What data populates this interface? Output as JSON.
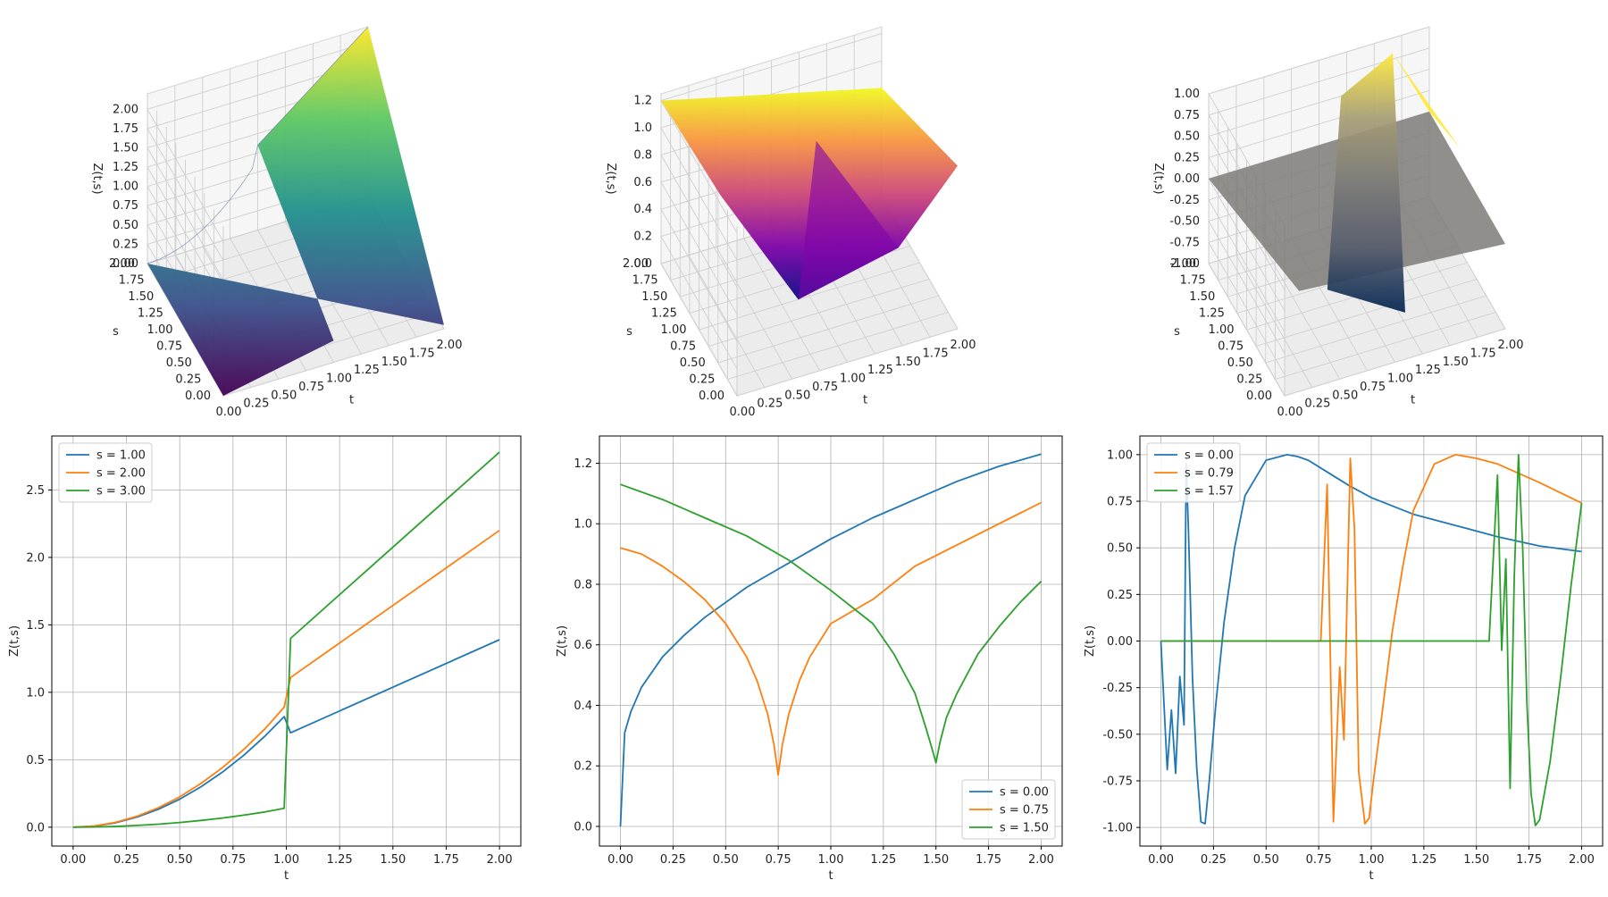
{
  "chart_data": [
    {
      "type": "surface3d",
      "xlabel": "t",
      "ylabel": "s",
      "zlabel": "Z(t,s)",
      "xlim": [
        0,
        2
      ],
      "ylim": [
        0,
        2
      ],
      "zlim": [
        0,
        2.2
      ],
      "xticks": [
        "0.00",
        "0.25",
        "0.50",
        "0.75",
        "1.00",
        "1.25",
        "1.50",
        "1.75",
        "2.00"
      ],
      "yticks": [
        "0.00",
        "0.25",
        "0.50",
        "0.75",
        "1.00",
        "1.25",
        "1.50",
        "1.75",
        "2.00"
      ],
      "zticks": [
        "0.00",
        "0.25",
        "0.50",
        "0.75",
        "1.00",
        "1.25",
        "1.50",
        "1.75",
        "2.00"
      ],
      "colormap": "viridis",
      "colors": [
        "#440154",
        "#3b528b",
        "#21908d",
        "#5dc863",
        "#fde725"
      ]
    },
    {
      "type": "surface3d",
      "xlabel": "t",
      "ylabel": "s",
      "zlabel": "Z(t,s)",
      "xlim": [
        0,
        2
      ],
      "ylim": [
        0,
        2
      ],
      "zlim": [
        0,
        1.25
      ],
      "xticks": [
        "0.00",
        "0.25",
        "0.50",
        "0.75",
        "1.00",
        "1.25",
        "1.50",
        "1.75",
        "2.00"
      ],
      "yticks": [
        "0.00",
        "0.25",
        "0.50",
        "0.75",
        "1.00",
        "1.25",
        "1.50",
        "1.75",
        "2.00"
      ],
      "zticks": [
        "0.0",
        "0.2",
        "0.4",
        "0.6",
        "0.8",
        "1.0",
        "1.2"
      ],
      "colormap": "plasma",
      "colors": [
        "#0d0887",
        "#7e03a8",
        "#cc4778",
        "#f89540",
        "#f0f921"
      ]
    },
    {
      "type": "surface3d",
      "xlabel": "t",
      "ylabel": "s",
      "zlabel": "Z(t,s)",
      "xlim": [
        0,
        2
      ],
      "ylim": [
        0,
        2
      ],
      "zlim": [
        -1,
        1
      ],
      "xticks": [
        "0.00",
        "0.25",
        "0.50",
        "0.75",
        "1.00",
        "1.25",
        "1.50",
        "1.75",
        "2.00"
      ],
      "yticks": [
        "0.00",
        "0.25",
        "0.50",
        "0.75",
        "1.00",
        "1.25",
        "1.50",
        "1.75",
        "2.00"
      ],
      "zticks": [
        "-1.00",
        "-0.75",
        "-0.50",
        "-0.25",
        "0.00",
        "0.25",
        "0.50",
        "0.75",
        "1.00"
      ],
      "colormap": "cividis",
      "colors": [
        "#00224e",
        "#575d6d",
        "#7c7b78",
        "#a59c74",
        "#fee838"
      ]
    },
    {
      "type": "line",
      "xlabel": "t",
      "ylabel": "Z(t,s)",
      "xlim": [
        -0.1,
        2.1
      ],
      "ylim": [
        -0.14,
        2.9
      ],
      "xticks": [
        0,
        0.25,
        0.5,
        0.75,
        1.0,
        1.25,
        1.5,
        1.75,
        2.0
      ],
      "yticks": [
        0,
        0.5,
        1.0,
        1.5,
        2.0,
        2.5
      ],
      "legend_position": "upper left",
      "grid": true,
      "series": [
        {
          "name": "s = 1.00",
          "color": "#1f77b4",
          "x": [
            0,
            0.1,
            0.2,
            0.3,
            0.4,
            0.5,
            0.6,
            0.7,
            0.8,
            0.9,
            0.99,
            1.02,
            2.0
          ],
          "y": [
            0,
            0.008,
            0.033,
            0.075,
            0.133,
            0.208,
            0.3,
            0.408,
            0.533,
            0.675,
            0.82,
            0.7,
            1.39
          ]
        },
        {
          "name": "s = 2.00",
          "color": "#ff7f0e",
          "x": [
            0,
            0.1,
            0.2,
            0.3,
            0.4,
            0.5,
            0.6,
            0.7,
            0.8,
            0.9,
            0.99,
            1.02,
            2.0
          ],
          "y": [
            0,
            0.009,
            0.036,
            0.081,
            0.144,
            0.225,
            0.324,
            0.441,
            0.576,
            0.729,
            0.89,
            1.11,
            2.2
          ]
        },
        {
          "name": "s = 3.00",
          "color": "#2ca02c",
          "x": [
            0,
            0.1,
            0.2,
            0.3,
            0.4,
            0.5,
            0.6,
            0.7,
            0.8,
            0.9,
            0.99,
            1.02,
            2.0
          ],
          "y": [
            0,
            0.002,
            0.006,
            0.013,
            0.022,
            0.035,
            0.05,
            0.068,
            0.089,
            0.113,
            0.14,
            1.4,
            2.78
          ]
        }
      ]
    },
    {
      "type": "line",
      "xlabel": "t",
      "ylabel": "Z(t,s)",
      "xlim": [
        -0.1,
        2.1
      ],
      "ylim": [
        -0.065,
        1.29
      ],
      "xticks": [
        0,
        0.25,
        0.5,
        0.75,
        1.0,
        1.25,
        1.5,
        1.75,
        2.0
      ],
      "yticks": [
        0,
        0.2,
        0.4,
        0.6,
        0.8,
        1.0,
        1.2
      ],
      "legend_position": "lower right",
      "grid": true,
      "series": [
        {
          "name": "s = 0.00",
          "color": "#1f77b4",
          "x": [
            0,
            0.02,
            0.05,
            0.1,
            0.2,
            0.3,
            0.4,
            0.5,
            0.6,
            0.75,
            0.9,
            1.0,
            1.2,
            1.4,
            1.6,
            1.8,
            2.0
          ],
          "y": [
            0,
            0.31,
            0.38,
            0.46,
            0.56,
            0.63,
            0.69,
            0.74,
            0.79,
            0.85,
            0.91,
            0.95,
            1.02,
            1.08,
            1.14,
            1.19,
            1.23
          ]
        },
        {
          "name": "s = 0.75",
          "color": "#ff7f0e",
          "x": [
            0,
            0.1,
            0.2,
            0.3,
            0.4,
            0.5,
            0.6,
            0.65,
            0.7,
            0.73,
            0.75,
            0.77,
            0.8,
            0.85,
            0.9,
            1.0,
            1.2,
            1.4,
            1.6,
            1.8,
            2.0
          ],
          "y": [
            0.92,
            0.9,
            0.86,
            0.81,
            0.75,
            0.67,
            0.56,
            0.48,
            0.37,
            0.27,
            0.17,
            0.27,
            0.37,
            0.48,
            0.56,
            0.67,
            0.75,
            0.86,
            0.93,
            1.0,
            1.07
          ]
        },
        {
          "name": "s = 1.50",
          "color": "#2ca02c",
          "x": [
            0,
            0.2,
            0.4,
            0.6,
            0.8,
            1.0,
            1.2,
            1.3,
            1.4,
            1.45,
            1.48,
            1.5,
            1.52,
            1.55,
            1.6,
            1.7,
            1.8,
            1.9,
            2.0
          ],
          "y": [
            1.13,
            1.08,
            1.02,
            0.96,
            0.88,
            0.78,
            0.67,
            0.57,
            0.44,
            0.33,
            0.26,
            0.21,
            0.28,
            0.36,
            0.44,
            0.57,
            0.66,
            0.74,
            0.81
          ]
        }
      ]
    },
    {
      "type": "line",
      "xlabel": "t",
      "ylabel": "Z(t,s)",
      "xlim": [
        -0.1,
        2.1
      ],
      "ylim": [
        -1.1,
        1.1
      ],
      "xticks": [
        0,
        0.25,
        0.5,
        0.75,
        1.0,
        1.25,
        1.5,
        1.75,
        2.0
      ],
      "yticks": [
        -1.0,
        -0.75,
        -0.5,
        -0.25,
        0,
        0.25,
        0.5,
        0.75,
        1.0
      ],
      "legend_position": "upper left",
      "grid": true,
      "series": [
        {
          "name": "s = 0.00",
          "color": "#1f77b4",
          "x": [
            0,
            0.03,
            0.05,
            0.07,
            0.09,
            0.11,
            0.12,
            0.13,
            0.15,
            0.17,
            0.19,
            0.21,
            0.23,
            0.26,
            0.3,
            0.35,
            0.4,
            0.5,
            0.6,
            0.65,
            0.7,
            0.8,
            0.9,
            1.0,
            1.2,
            1.4,
            1.6,
            1.8,
            2.0
          ],
          "y": [
            0,
            -0.69,
            -0.37,
            -0.71,
            -0.19,
            -0.45,
            0.95,
            0.62,
            -0.2,
            -0.68,
            -0.97,
            -0.98,
            -0.75,
            -0.35,
            0.1,
            0.5,
            0.78,
            0.97,
            1.0,
            0.99,
            0.97,
            0.9,
            0.83,
            0.77,
            0.68,
            0.62,
            0.56,
            0.51,
            0.48
          ]
        },
        {
          "name": "s = 0.79",
          "color": "#ff7f0e",
          "x": [
            0,
            0.76,
            0.79,
            0.82,
            0.85,
            0.87,
            0.9,
            0.92,
            0.94,
            0.97,
            0.99,
            1.01,
            1.05,
            1.1,
            1.15,
            1.2,
            1.3,
            1.4,
            1.5,
            1.6,
            1.8,
            2.0
          ],
          "y": [
            0,
            0,
            0.84,
            -0.97,
            -0.14,
            -0.53,
            0.98,
            0.6,
            -0.7,
            -0.98,
            -0.95,
            -0.75,
            -0.4,
            0.05,
            0.4,
            0.7,
            0.95,
            1.0,
            0.98,
            0.95,
            0.85,
            0.74
          ]
        },
        {
          "name": "s = 1.57",
          "color": "#2ca02c",
          "x": [
            0,
            1.56,
            1.6,
            1.62,
            1.64,
            1.66,
            1.68,
            1.7,
            1.72,
            1.74,
            1.76,
            1.78,
            1.8,
            1.85,
            1.9,
            1.95,
            2.0
          ],
          "y": [
            0,
            0,
            0.89,
            -0.05,
            0.44,
            -0.79,
            0.35,
            1.0,
            0.5,
            -0.33,
            -0.82,
            -0.99,
            -0.96,
            -0.65,
            -0.2,
            0.3,
            0.74
          ]
        }
      ]
    }
  ]
}
